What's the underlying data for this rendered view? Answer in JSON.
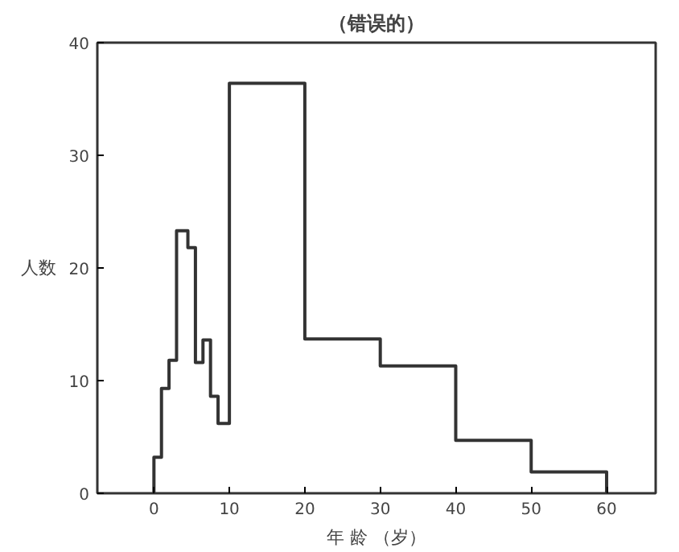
{
  "chart_data": {
    "type": "histogram",
    "title": "（错误的）",
    "xlabel": "年 龄 （岁）",
    "ylabel": "人数",
    "bins": [
      0,
      1,
      2,
      3,
      4.5,
      5.5,
      6.5,
      7.5,
      8.5,
      10,
      20,
      30,
      40,
      50,
      60
    ],
    "values": [
      3.2,
      9.3,
      11.8,
      23.3,
      21.8,
      11.6,
      13.6,
      8.6,
      6.2,
      36.4,
      13.7,
      11.3,
      4.7,
      1.9
    ],
    "color": "#333333",
    "xlim": [
      -7.5,
      66.5
    ],
    "ylim": [
      0,
      40
    ],
    "xticks": [
      0,
      10,
      20,
      30,
      40,
      50,
      60
    ],
    "yticks": [
      0,
      10,
      20,
      30,
      40
    ],
    "grid": false
  }
}
